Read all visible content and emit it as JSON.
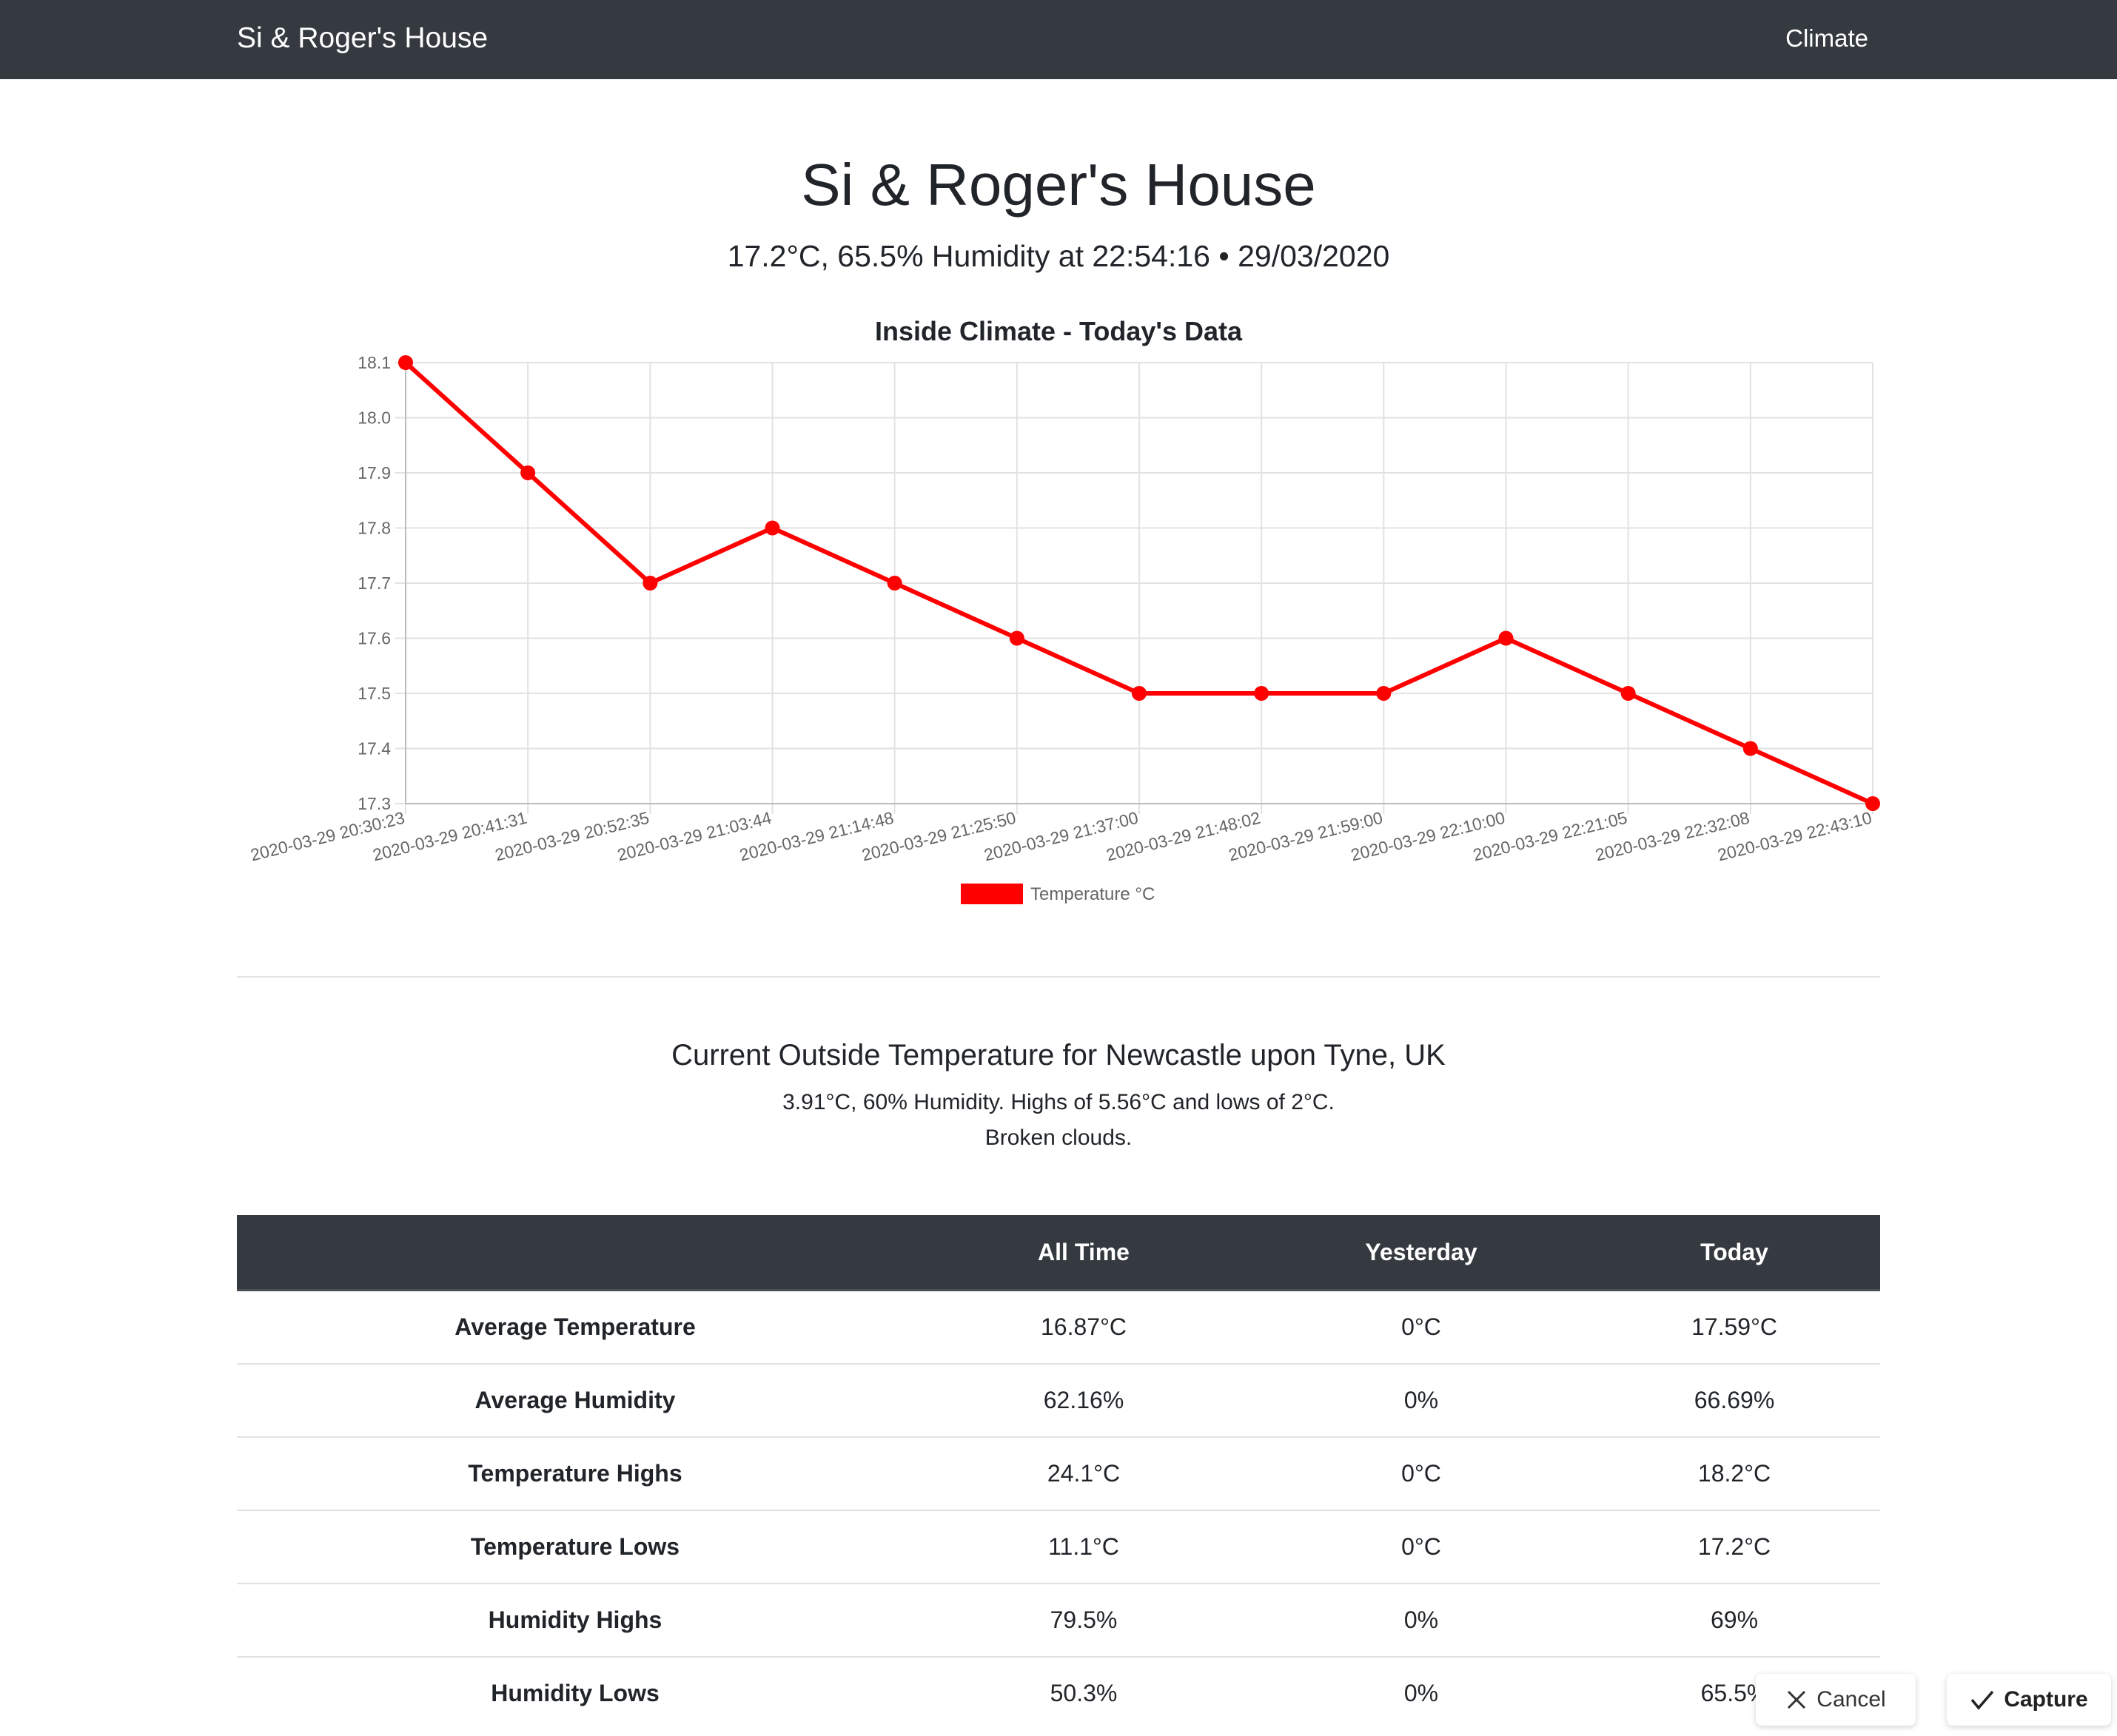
{
  "navbar": {
    "brand": "Si & Roger's House",
    "link": "Climate"
  },
  "header": {
    "title": "Si & Roger's House",
    "subtitle": "17.2°C, 65.5% Humidity at 22:54:16 • 29/03/2020"
  },
  "chart_data": {
    "type": "line",
    "title": "Inside Climate - Today's Data",
    "xlabel": "",
    "ylabel": "",
    "x": [
      "2020-03-29 20:30:23",
      "2020-03-29 20:41:31",
      "2020-03-29 20:52:35",
      "2020-03-29 21:03:44",
      "2020-03-29 21:14:48",
      "2020-03-29 21:25:50",
      "2020-03-29 21:37:00",
      "2020-03-29 21:48:02",
      "2020-03-29 21:59:00",
      "2020-03-29 22:10:00",
      "2020-03-29 22:21:05",
      "2020-03-29 22:32:08",
      "2020-03-29 22:43:10"
    ],
    "series": [
      {
        "name": "Temperature °C",
        "color": "#ff0000",
        "values": [
          18.1,
          17.9,
          17.7,
          17.8,
          17.7,
          17.6,
          17.5,
          17.5,
          17.5,
          17.6,
          17.5,
          17.4,
          17.3
        ]
      }
    ],
    "ylim": [
      17.3,
      18.1
    ],
    "yticks": [
      "18.1",
      "18.0",
      "17.9",
      "17.8",
      "17.7",
      "17.6",
      "17.5",
      "17.4",
      "17.3"
    ],
    "grid": true,
    "legend": "bottom"
  },
  "outside": {
    "title": "Current Outside Temperature for Newcastle upon Tyne, UK",
    "line1": "3.91°C, 60% Humidity. Highs of 5.56°C and lows of 2°C.",
    "line2": "Broken clouds."
  },
  "table": {
    "headers": [
      "",
      "All Time",
      "Yesterday",
      "Today"
    ],
    "rows": [
      {
        "label": "Average Temperature",
        "all_time": "16.87°C",
        "yesterday": "0°C",
        "today": "17.59°C"
      },
      {
        "label": "Average Humidity",
        "all_time": "62.16%",
        "yesterday": "0%",
        "today": "66.69%"
      },
      {
        "label": "Temperature Highs",
        "all_time": "24.1°C",
        "yesterday": "0°C",
        "today": "18.2°C"
      },
      {
        "label": "Temperature Lows",
        "all_time": "11.1°C",
        "yesterday": "0°C",
        "today": "17.2°C"
      },
      {
        "label": "Humidity Highs",
        "all_time": "79.5%",
        "yesterday": "0%",
        "today": "69%"
      },
      {
        "label": "Humidity Lows",
        "all_time": "50.3%",
        "yesterday": "0%",
        "today": "65.5%"
      }
    ]
  },
  "overlay": {
    "cancel_label": "Cancel",
    "capture_label": "Capture",
    "cancel_icon": "close-icon",
    "capture_icon": "checkmark-icon"
  }
}
